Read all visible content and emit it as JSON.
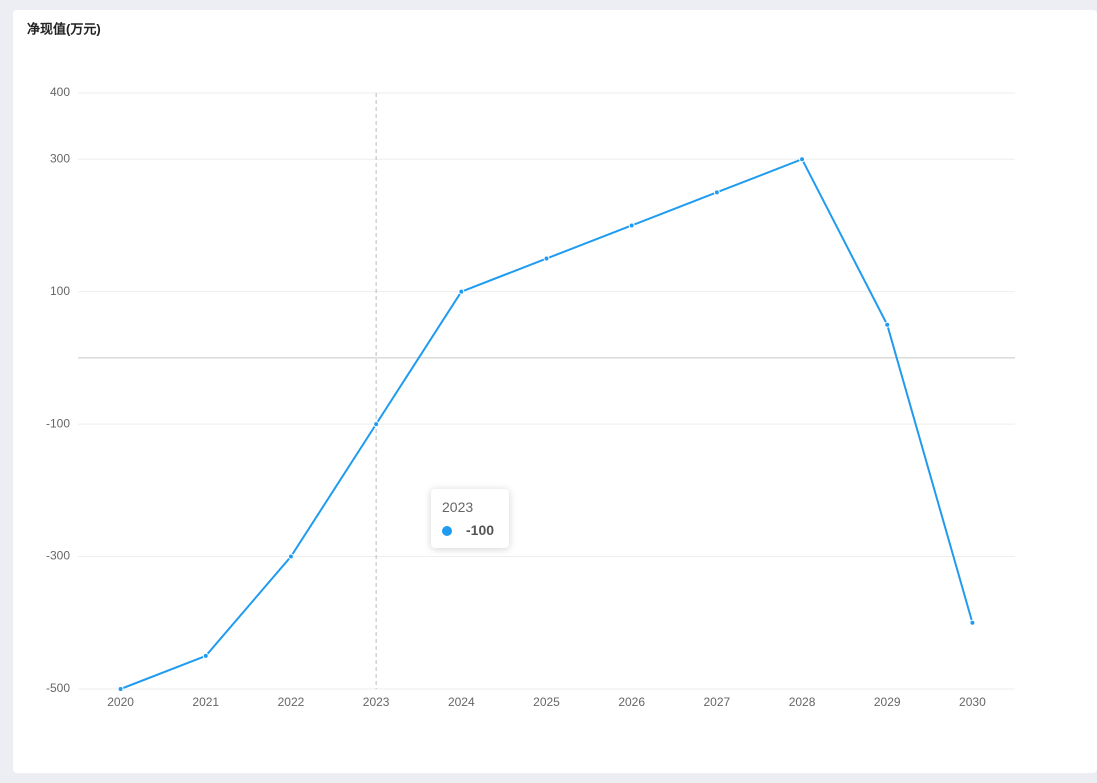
{
  "chart_data": {
    "type": "line",
    "title": "净现值(万元)",
    "categories": [
      "2020",
      "2021",
      "2022",
      "2023",
      "2024",
      "2025",
      "2026",
      "2027",
      "2028",
      "2029",
      "2030"
    ],
    "values": [
      -500,
      -450,
      -300,
      -100,
      100,
      150,
      200,
      250,
      300,
      50,
      -400
    ],
    "color": "#1f9bf0",
    "ylim": [
      -500,
      400
    ],
    "yticks": [
      -500,
      -300,
      -100,
      100,
      300,
      400
    ],
    "grid": true,
    "tooltip_index": 3
  }
}
